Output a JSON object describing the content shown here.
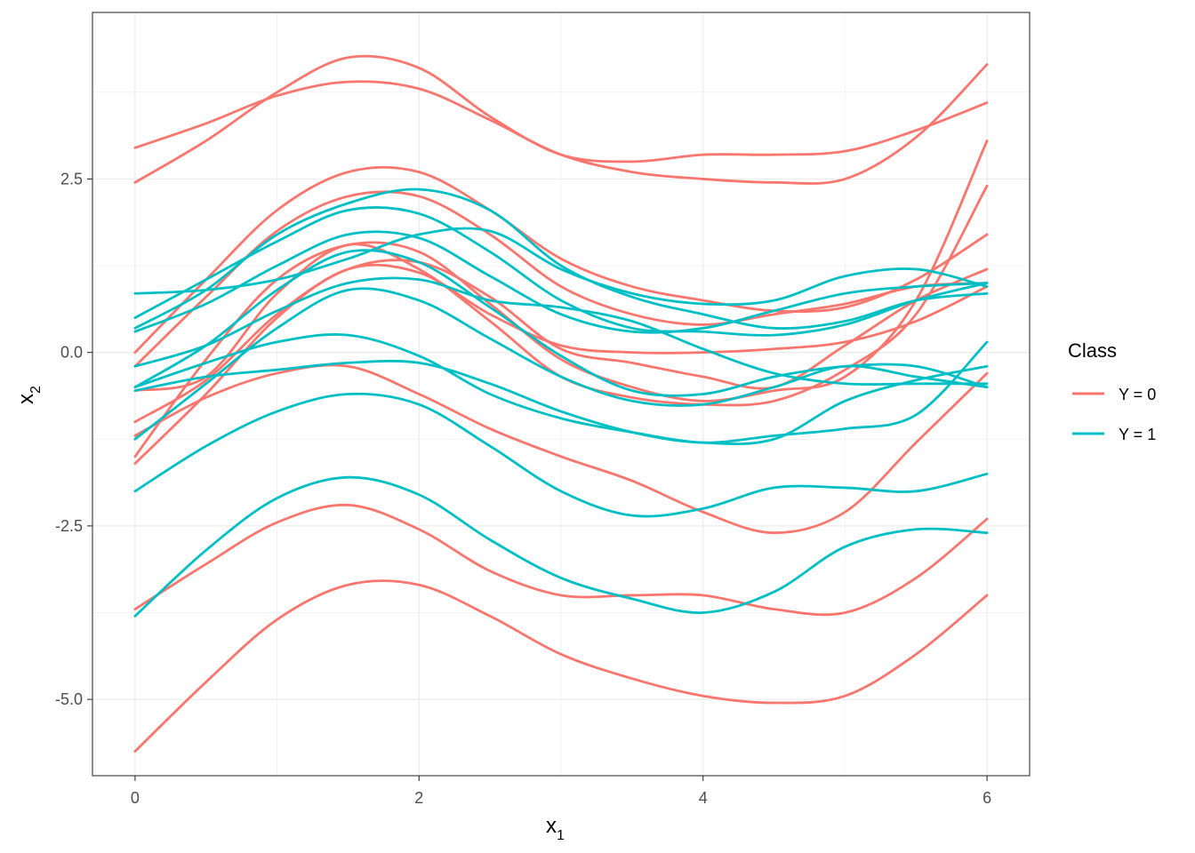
{
  "chart_data": {
    "type": "line",
    "xlabel": "x",
    "xlabel_sub": "1",
    "ylabel": "x",
    "ylabel_sub": "2",
    "xlim": [
      -0.3,
      6.3
    ],
    "ylim": [
      -6.1,
      4.9
    ],
    "x_ticks": [
      0,
      2,
      4,
      6
    ],
    "x_tick_labels": [
      "0",
      "2",
      "4",
      "6"
    ],
    "y_ticks": [
      -5,
      -2.5,
      0,
      2.5
    ],
    "y_tick_labels": [
      "-5.0",
      "-2.5",
      "0.0",
      "2.5"
    ],
    "grid": true,
    "legend": {
      "title": "Class",
      "placement": "right",
      "entries": [
        {
          "label": "Y = 0",
          "color": "#F8766D"
        },
        {
          "label": "Y = 1",
          "color": "#00BFC4"
        }
      ]
    },
    "x": [
      0,
      0.5,
      1,
      1.5,
      2,
      2.5,
      3,
      3.5,
      4,
      4.5,
      5,
      5.5,
      6
    ],
    "series": [
      {
        "class": 0,
        "values": [
          2.95,
          3.3,
          3.7,
          3.9,
          3.8,
          3.35,
          2.85,
          2.6,
          2.5,
          2.45,
          2.5,
          3.1,
          4.15
        ]
      },
      {
        "class": 0,
        "values": [
          2.45,
          3.05,
          3.75,
          4.25,
          4.1,
          3.4,
          2.85,
          2.75,
          2.85,
          2.85,
          2.9,
          3.2,
          3.6
        ]
      },
      {
        "class": 0,
        "values": [
          0.0,
          1.05,
          2.05,
          2.6,
          2.6,
          2.05,
          1.35,
          0.95,
          0.75,
          0.6,
          0.65,
          1.05,
          1.7
        ]
      },
      {
        "class": 0,
        "values": [
          -0.2,
          0.8,
          1.75,
          2.25,
          2.25,
          1.7,
          0.95,
          0.55,
          0.4,
          0.55,
          0.7,
          0.95,
          1.0
        ]
      },
      {
        "class": 0,
        "values": [
          -1.5,
          -0.1,
          1.05,
          1.55,
          1.45,
          0.7,
          -0.1,
          -0.5,
          -0.7,
          -0.55,
          -0.35,
          0.75,
          3.05
        ]
      },
      {
        "class": 0,
        "values": [
          -1.0,
          -0.4,
          0.55,
          1.2,
          1.3,
          0.8,
          0.05,
          -0.15,
          -0.35,
          -0.5,
          0.1,
          0.75,
          1.2
        ]
      },
      {
        "class": 0,
        "values": [
          -1.6,
          -0.6,
          0.5,
          1.2,
          1.15,
          0.55,
          0.1,
          0.0,
          0.0,
          0.05,
          0.15,
          0.45,
          0.95
        ]
      },
      {
        "class": 0,
        "values": [
          -0.55,
          -0.35,
          0.85,
          1.55,
          1.2,
          0.45,
          -0.35,
          -0.65,
          -0.75,
          -0.7,
          -0.25,
          0.55,
          2.4
        ]
      },
      {
        "class": 0,
        "values": [
          -1.2,
          -0.65,
          -0.3,
          -0.2,
          -0.6,
          -1.1,
          -1.5,
          -1.85,
          -2.3,
          -2.6,
          -2.3,
          -1.3,
          -0.3
        ]
      },
      {
        "class": 0,
        "values": [
          -3.7,
          -3.05,
          -2.45,
          -2.2,
          -2.55,
          -3.15,
          -3.5,
          -3.5,
          -3.5,
          -3.7,
          -3.75,
          -3.25,
          -2.4
        ]
      },
      {
        "class": 0,
        "values": [
          -5.75,
          -4.75,
          -3.85,
          -3.35,
          -3.35,
          -3.8,
          -4.35,
          -4.7,
          -4.95,
          -5.05,
          -4.95,
          -4.35,
          -3.5
        ]
      },
      {
        "class": 1,
        "values": [
          0.85,
          0.9,
          1.05,
          1.35,
          1.7,
          1.75,
          1.2,
          0.85,
          0.7,
          0.75,
          1.1,
          1.2,
          0.95
        ]
      },
      {
        "class": 1,
        "values": [
          0.35,
          0.9,
          1.7,
          2.15,
          2.35,
          2.05,
          1.25,
          0.8,
          0.55,
          0.35,
          0.45,
          0.75,
          0.85
        ]
      },
      {
        "class": 1,
        "values": [
          0.5,
          1.05,
          1.6,
          2.05,
          2.0,
          1.45,
          0.75,
          0.35,
          0.3,
          0.25,
          0.4,
          0.75,
          1.0
        ]
      },
      {
        "class": 1,
        "values": [
          0.3,
          0.7,
          1.25,
          1.7,
          1.65,
          1.1,
          0.55,
          0.3,
          0.35,
          0.6,
          0.85,
          0.95,
          1.0
        ]
      },
      {
        "class": 1,
        "values": [
          -0.2,
          0.1,
          0.6,
          1.0,
          1.05,
          0.75,
          0.65,
          0.45,
          0.05,
          -0.3,
          -0.45,
          -0.45,
          -0.45
        ]
      },
      {
        "class": 1,
        "values": [
          -0.5,
          0.1,
          0.9,
          1.45,
          1.3,
          0.65,
          -0.05,
          -0.55,
          -0.6,
          -0.35,
          -0.2,
          -0.2,
          -0.5
        ]
      },
      {
        "class": 1,
        "values": [
          -1.25,
          -0.45,
          0.35,
          0.9,
          0.75,
          0.2,
          -0.35,
          -0.7,
          -0.75,
          -0.5,
          -0.2,
          -0.35,
          -0.5
        ]
      },
      {
        "class": 1,
        "values": [
          -0.5,
          -0.15,
          0.15,
          0.25,
          -0.05,
          -0.6,
          -0.95,
          -1.15,
          -1.3,
          -1.25,
          -0.7,
          -0.4,
          -0.2
        ]
      },
      {
        "class": 1,
        "values": [
          -0.55,
          -0.35,
          -0.25,
          -0.15,
          -0.15,
          -0.45,
          -0.85,
          -1.15,
          -1.3,
          -1.2,
          -1.1,
          -0.9,
          0.15
        ]
      },
      {
        "class": 1,
        "values": [
          -2.0,
          -1.35,
          -0.85,
          -0.6,
          -0.75,
          -1.35,
          -2.0,
          -2.35,
          -2.25,
          -1.95,
          -1.95,
          -2.0,
          -1.75
        ]
      },
      {
        "class": 1,
        "values": [
          -3.8,
          -2.85,
          -2.1,
          -1.8,
          -2.05,
          -2.7,
          -3.25,
          -3.55,
          -3.75,
          -3.45,
          -2.8,
          -2.55,
          -2.6
        ]
      }
    ]
  }
}
